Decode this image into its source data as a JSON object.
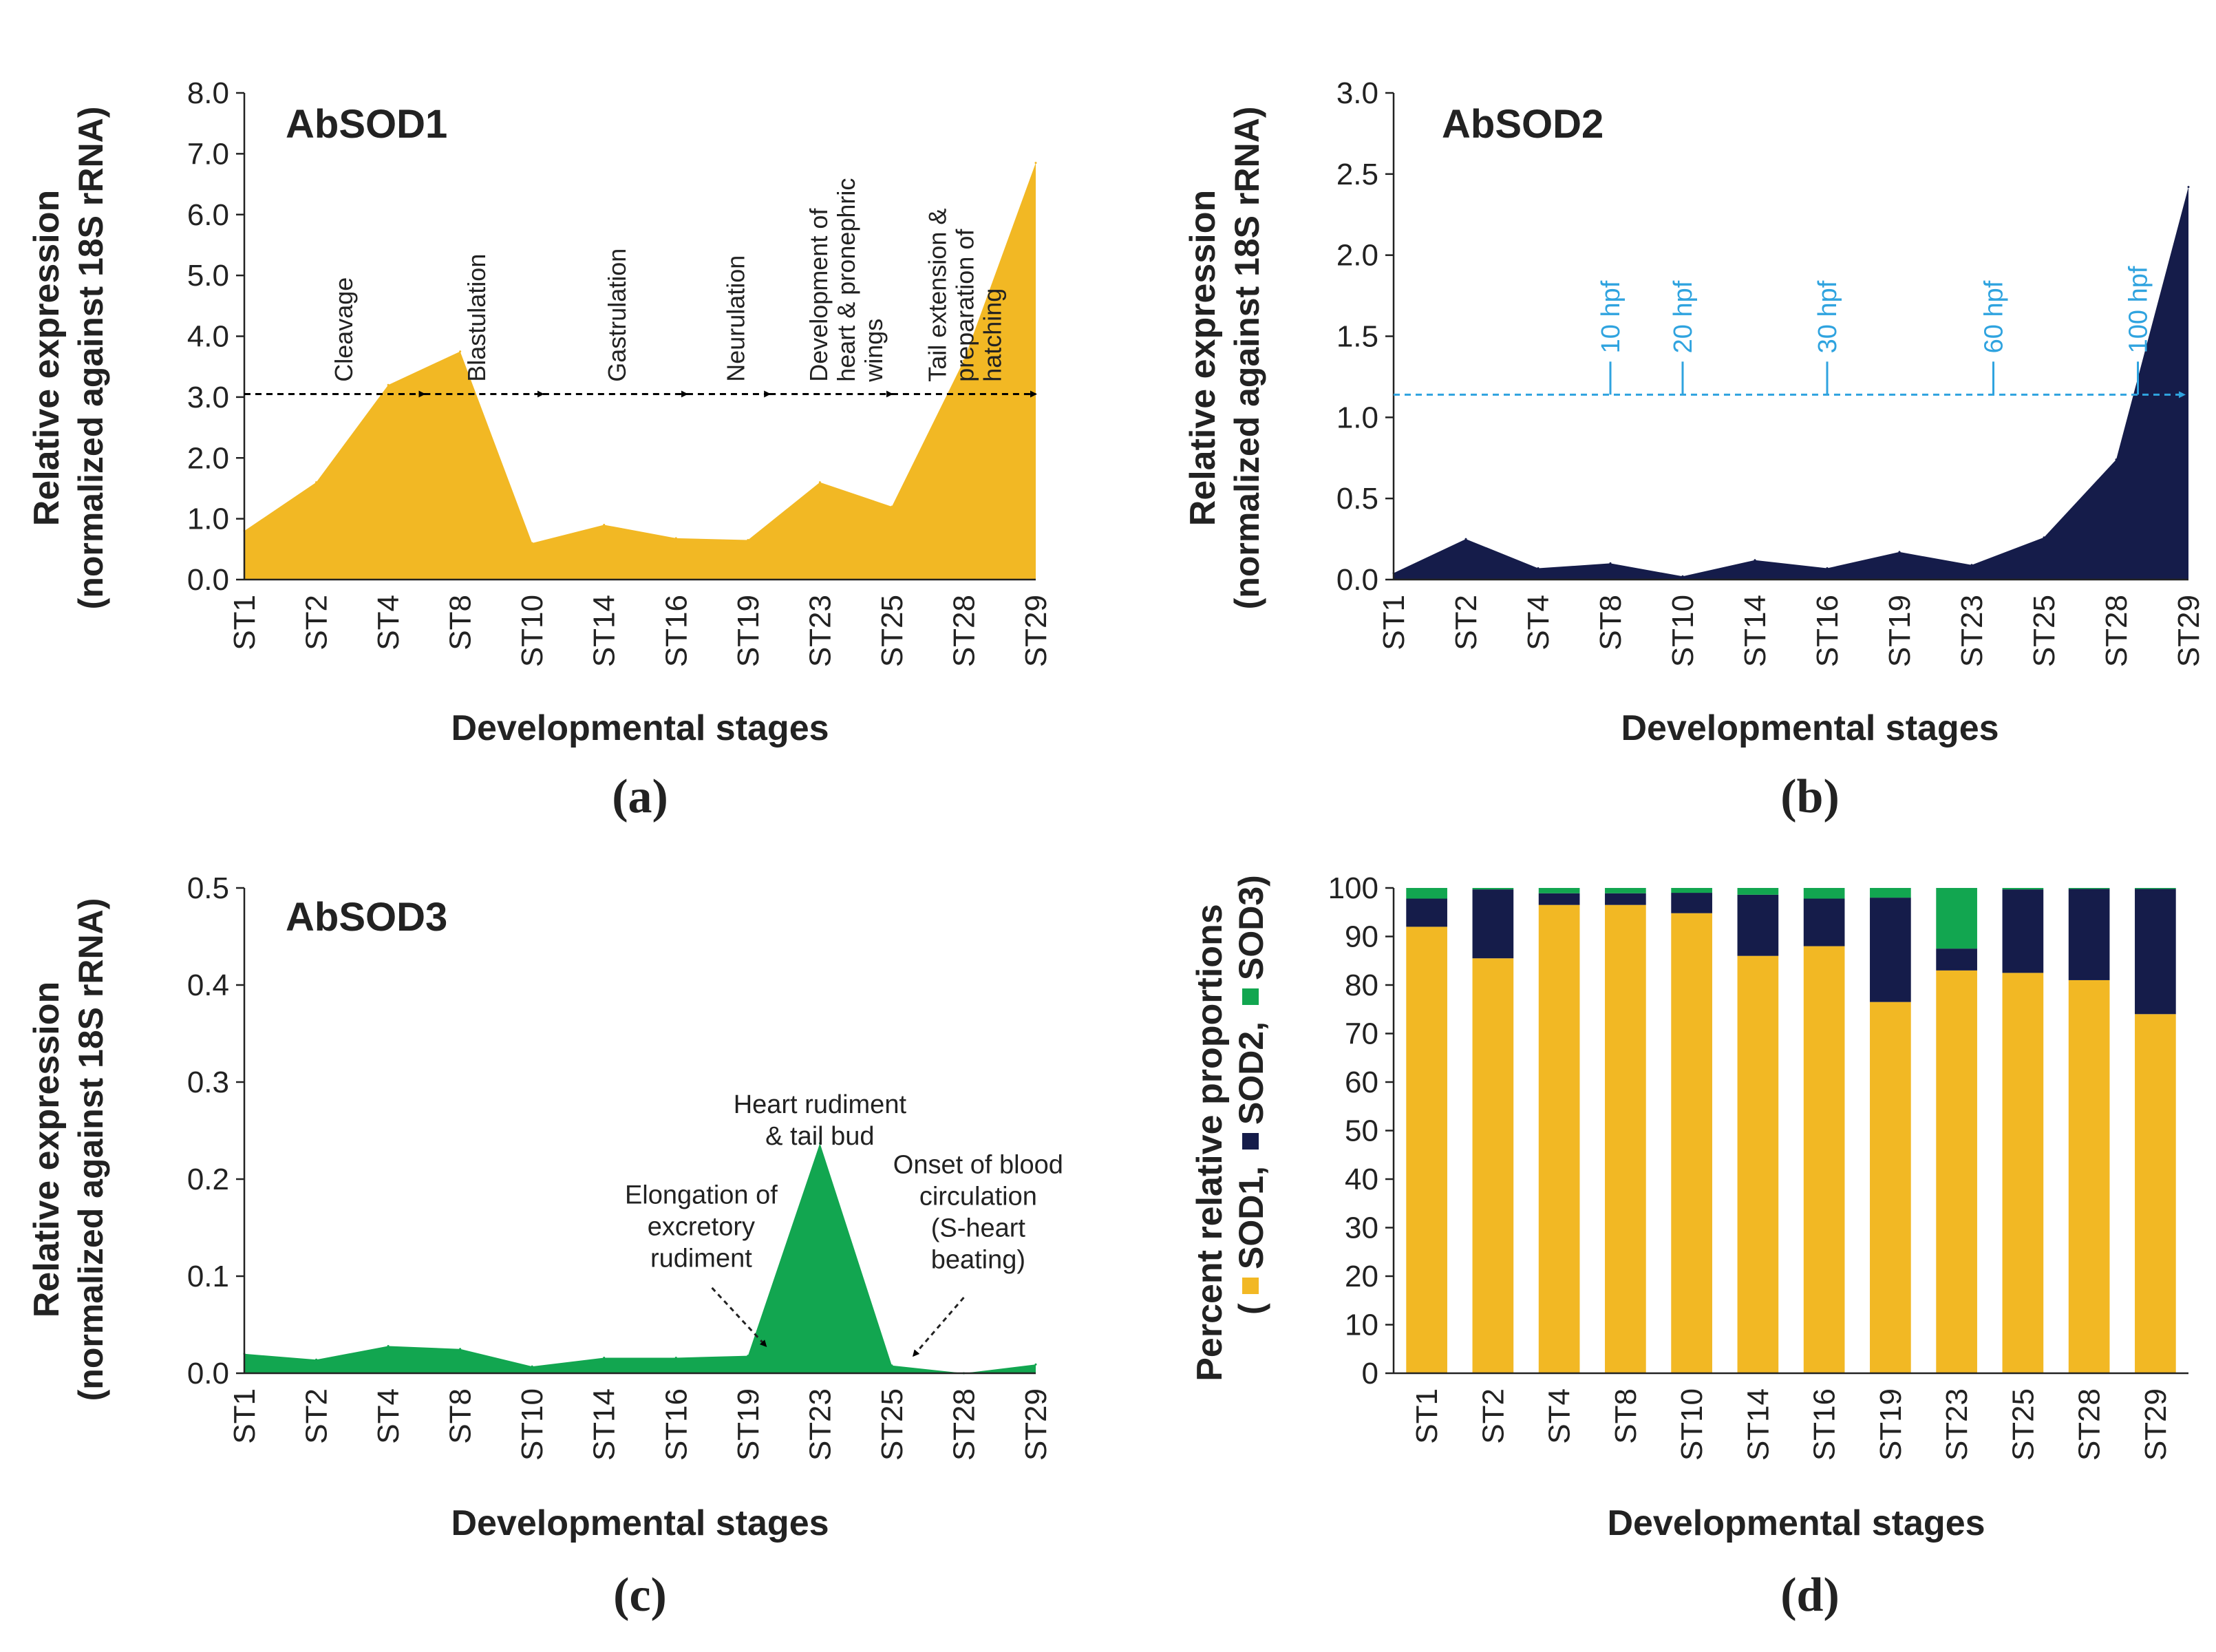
{
  "figure": {
    "colors": {
      "sod1": "#F2B824",
      "sod2": "#151C4A",
      "sod3": "#12A650",
      "arrow_a": "#000000",
      "arrow_b": "#2FA3DF",
      "text": "#222222"
    }
  },
  "chart_data": [
    {
      "panel": "(a)",
      "type": "area",
      "title": "AbSOD1",
      "xlabel": "Developmental stages",
      "ylabel_line1": "Relative expression",
      "ylabel_line2": "(normalized against 18S rRNA)",
      "ylim": [
        0,
        8
      ],
      "ytick_values": [
        0,
        1,
        2,
        3,
        4,
        5,
        6,
        7,
        8
      ],
      "yticks": [
        "0.0",
        "1.0",
        "2.0",
        "3.0",
        "4.0",
        "5.0",
        "6.0",
        "7.0",
        "8.0"
      ],
      "categories": [
        "ST1",
        "ST2",
        "ST4",
        "ST8",
        "ST10",
        "ST14",
        "ST16",
        "ST19",
        "ST23",
        "ST25",
        "ST28",
        "ST29"
      ],
      "values": [
        0.8,
        1.6,
        3.2,
        3.75,
        0.6,
        0.9,
        0.68,
        0.65,
        1.6,
        1.2,
        3.6,
        6.85
      ],
      "arrow_y": 3.05,
      "arrow_stops": [
        2.5,
        4.15,
        6.15,
        7.3,
        9.0,
        11.0
      ],
      "annotations": [
        {
          "lines": [
            "Cleavage"
          ],
          "x": 1.5,
          "y": 3.25
        },
        {
          "lines": [
            "Blastulation"
          ],
          "x": 3.35,
          "y": 3.25
        },
        {
          "lines": [
            "Gastrulation"
          ],
          "x": 5.3,
          "y": 3.25
        },
        {
          "lines": [
            "Neurulation"
          ],
          "x": 6.95,
          "y": 3.25
        },
        {
          "lines": [
            "Development of",
            "heart & pronephric",
            "wings"
          ],
          "x": 8.1,
          "y": 3.25
        },
        {
          "lines": [
            "Tail extension &",
            "preparation of",
            "hatching"
          ],
          "x": 9.75,
          "y": 3.25
        }
      ]
    },
    {
      "panel": "(b)",
      "type": "area",
      "title": "AbSOD2",
      "xlabel": "Developmental stages",
      "ylabel_line1": "Relative expression",
      "ylabel_line2": "(normalized against 18S rRNA)",
      "ylim": [
        0,
        3
      ],
      "ytick_values": [
        0,
        0.5,
        1,
        1.5,
        2,
        2.5,
        3
      ],
      "yticks": [
        "0.0",
        "0.5",
        "1.0",
        "1.5",
        "2.0",
        "2.5",
        "3.0"
      ],
      "categories": [
        "ST1",
        "ST2",
        "ST4",
        "ST8",
        "ST10",
        "ST14",
        "ST16",
        "ST19",
        "ST23",
        "ST25",
        "ST28",
        "ST29"
      ],
      "values": [
        0.04,
        0.25,
        0.07,
        0.1,
        0.02,
        0.12,
        0.07,
        0.17,
        0.09,
        0.26,
        0.74,
        2.42
      ],
      "arrow_y": 1.14,
      "hpf_markers": [
        {
          "label": "10 hpf",
          "x": 3.0
        },
        {
          "label": "20 hpf",
          "x": 4.0
        },
        {
          "label": "30 hpf",
          "x": 6.0
        },
        {
          "label": "60 hpf",
          "x": 8.3
        },
        {
          "label": "100 hpf",
          "x": 10.3
        }
      ]
    },
    {
      "panel": "(c)",
      "type": "area",
      "title": "AbSOD3",
      "xlabel": "Developmental stages",
      "ylabel_line1": "Relative expression",
      "ylabel_line2": "(normalized against 18S rRNA)",
      "ylim": [
        0,
        0.5
      ],
      "ytick_values": [
        0,
        0.1,
        0.2,
        0.3,
        0.4,
        0.5
      ],
      "yticks": [
        "0.0",
        "0.1",
        "0.2",
        "0.3",
        "0.4",
        "0.5"
      ],
      "categories": [
        "ST1",
        "ST2",
        "ST4",
        "ST8",
        "ST10",
        "ST14",
        "ST16",
        "ST19",
        "ST23",
        "ST25",
        "ST28",
        "ST29"
      ],
      "values": [
        0.02,
        0.014,
        0.028,
        0.025,
        0.007,
        0.016,
        0.016,
        0.018,
        0.237,
        0.008,
        0.0,
        0.009
      ],
      "annotations": [
        {
          "id": "heart",
          "lines": [
            "Heart rudiment",
            "& tail bud"
          ],
          "x": 8.0,
          "y": 0.268,
          "align": "middle"
        },
        {
          "id": "elong",
          "lines": [
            "Elongation of",
            "excretory",
            "rudiment"
          ],
          "x": 6.35,
          "y": 0.175,
          "align": "middle"
        },
        {
          "id": "onset",
          "lines": [
            "Onset of blood",
            "circulation",
            "(S-heart",
            "beating)"
          ],
          "x": 10.2,
          "y": 0.206,
          "align": "middle"
        }
      ]
    },
    {
      "panel": "(d)",
      "type": "bar",
      "stacked": true,
      "xlabel": "Developmental stages",
      "ylabel_line1": "Percent relative proportions",
      "legend": [
        "SOD1",
        "SOD2",
        "SOD3"
      ],
      "ylim": [
        0,
        100
      ],
      "ytick_values": [
        0,
        10,
        20,
        30,
        40,
        50,
        60,
        70,
        80,
        90,
        100
      ],
      "yticks": [
        "0",
        "10",
        "20",
        "30",
        "40",
        "50",
        "60",
        "70",
        "80",
        "90",
        "100"
      ],
      "categories": [
        "ST1",
        "ST2",
        "ST4",
        "ST8",
        "ST10",
        "ST14",
        "ST16",
        "ST19",
        "ST23",
        "ST25",
        "ST28",
        "ST29"
      ],
      "series": [
        {
          "name": "SOD1",
          "values": [
            92,
            85.5,
            96.5,
            96.5,
            94.8,
            86,
            88,
            76.5,
            83,
            82.5,
            81,
            74
          ]
        },
        {
          "name": "SOD2",
          "values": [
            5.8,
            14.2,
            2.4,
            2.4,
            4.2,
            12.6,
            9.8,
            21.5,
            4.5,
            17.2,
            18.8,
            25.8
          ]
        },
        {
          "name": "SOD3",
          "values": [
            2.2,
            0.3,
            1.1,
            1.1,
            1.0,
            1.4,
            2.2,
            2.0,
            12.5,
            0.3,
            0.2,
            0.2
          ]
        }
      ]
    }
  ]
}
